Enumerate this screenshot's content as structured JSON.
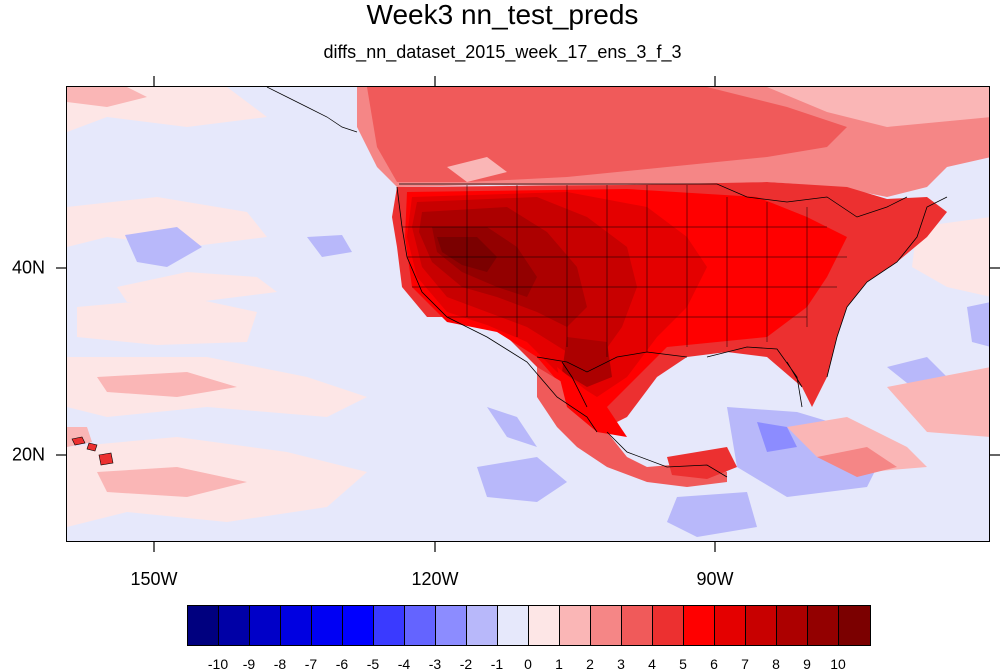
{
  "title": "Week3 nn_test_preds",
  "subtitle": "diffs_nn_dataset_2015_week_17_ens_3_f_3",
  "map": {
    "projection": "cylindrical-equidistant",
    "lon_range": [
      -161,
      -67
    ],
    "lat_range": [
      10,
      58
    ],
    "lon_ticks": [
      "150W",
      "120W",
      "90W"
    ],
    "lat_ticks": [
      "40N",
      "20N"
    ],
    "field": "temperature difference",
    "pattern": "strong positive anomaly over western/central USA and Mexico; weak negative anomalies over Caribbean and central Pacific"
  },
  "legend": {
    "levels": [
      "-10",
      "-9",
      "-8",
      "-7",
      "-6",
      "-5",
      "-4",
      "-3",
      "-2",
      "-1",
      "0",
      "1",
      "2",
      "3",
      "4",
      "5",
      "6",
      "7",
      "8",
      "9",
      "10"
    ],
    "colors": [
      "#00007f",
      "#0000a6",
      "#0000c8",
      "#0000e1",
      "#0000f4",
      "#0000ff",
      "#3a3aff",
      "#6464ff",
      "#8c8cff",
      "#b8b8fa",
      "#e6e8fb",
      "#fde6e6",
      "#fab6b6",
      "#f58686",
      "#f05a5a",
      "#ec3030",
      "#ff0000",
      "#e40000",
      "#c80000",
      "#ac0000",
      "#930000",
      "#7b0000"
    ]
  }
}
